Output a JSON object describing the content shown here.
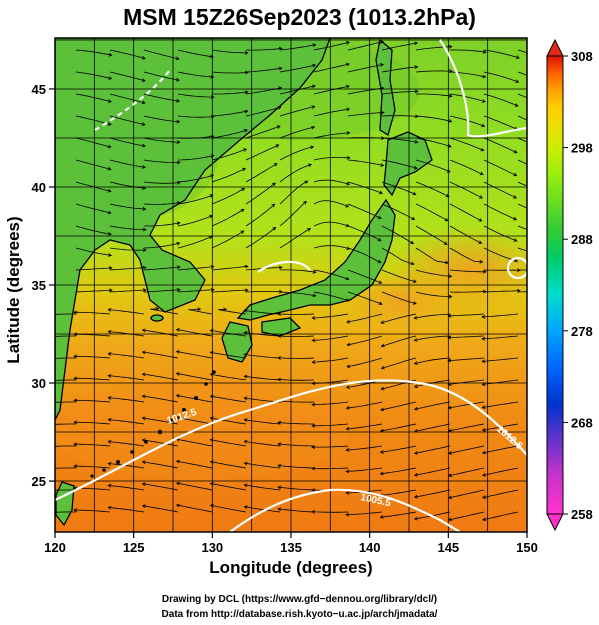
{
  "header": {
    "title": "MSM 15Z26Sep2023 (1013.2hPa)"
  },
  "axes": {
    "xlabel": "Longitude (degrees)",
    "ylabel": "Latitude  (degrees)",
    "x_ticks": [
      "120",
      "125",
      "130",
      "135",
      "140",
      "145",
      "150"
    ],
    "y_ticks": [
      "25",
      "30",
      "35",
      "40",
      "45"
    ],
    "xlim": [
      120,
      150
    ],
    "ylim": [
      22.4,
      47.6
    ]
  },
  "colorbar": {
    "ticks": [
      "308",
      "298",
      "288",
      "278",
      "268",
      "258"
    ],
    "range": [
      258,
      308
    ],
    "colors": [
      "#ff33cc",
      "#cc33cc",
      "#6633cc",
      "#0033cc",
      "#0066ff",
      "#00a6ff",
      "#00ddcc",
      "#00cc66",
      "#33cc33",
      "#66dd22",
      "#99ee11",
      "#ccee00",
      "#eedd00",
      "#ffcc00",
      "#ff9900",
      "#ff6600",
      "#ff3300",
      "#dd1100"
    ]
  },
  "contours": [
    "1012.5",
    "1012.5",
    "1005.5"
  ],
  "footer": {
    "line1": "Drawing by DCL (https://www.gfd−dennou.org/library/dcl/)",
    "line2": "Data from http://database.rish.kyoto−u.ac.jp/arch/jmadata/"
  }
}
